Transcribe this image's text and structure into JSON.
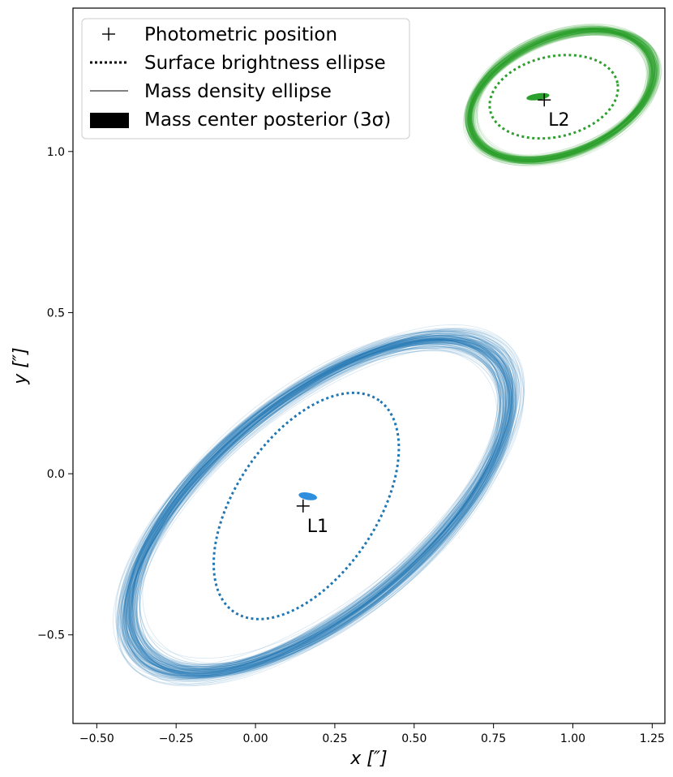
{
  "chart_data": {
    "type": "scatter",
    "xlabel": "x [″]",
    "ylabel": "y [″]",
    "xlim": [
      -0.575,
      1.29
    ],
    "ylim": [
      -0.775,
      1.445
    ],
    "xticks": [
      -0.5,
      -0.25,
      0.0,
      0.25,
      0.5,
      0.75,
      1.0,
      1.25
    ],
    "xtick_labels": [
      "−0.50",
      "−0.25",
      "0.00",
      "0.25",
      "0.50",
      "0.75",
      "1.00",
      "1.25"
    ],
    "yticks": [
      -0.5,
      0.0,
      0.5,
      1.0
    ],
    "ytick_labels": [
      "−0.5",
      "0.0",
      "0.5",
      "1.0"
    ],
    "grid": false,
    "legend_position": "top-left",
    "legend": [
      {
        "label": "Photometric position",
        "marker": "plus"
      },
      {
        "label": "Surface brightness ellipse",
        "marker": "dotted-line"
      },
      {
        "label": "Mass density ellipse",
        "marker": "thin-line"
      },
      {
        "label": "Mass center posterior (3σ)",
        "marker": "filled-patch"
      }
    ],
    "lenses": [
      {
        "name": "L1",
        "color": "#1f77b4",
        "posterior_color": "#2f8fdf",
        "photometric_position": [
          0.15,
          -0.1
        ],
        "surface_brightness_ellipse": {
          "center": [
            0.16,
            -0.1
          ],
          "semi_major": 0.4,
          "semi_minor": 0.22,
          "angle_deg": 55
        },
        "mass_ellipse": {
          "center": [
            0.2,
            -0.1
          ],
          "semi_major": 0.72,
          "semi_minor": 0.33,
          "angle_deg": 38.5
        },
        "mass_center_posterior": {
          "center": [
            0.165,
            -0.07
          ],
          "rx": 0.01,
          "ry": 0.028,
          "angle_deg": 80
        }
      },
      {
        "name": "L2",
        "color": "#2ca02c",
        "posterior_color": "#2ca02c",
        "photometric_position": [
          0.91,
          1.16
        ],
        "surface_brightness_ellipse": {
          "center": [
            0.94,
            1.17
          ],
          "semi_major": 0.205,
          "semi_minor": 0.125,
          "angle_deg": 12
        },
        "mass_ellipse": {
          "center": [
            0.965,
            1.175
          ],
          "semi_major": 0.305,
          "semi_minor": 0.18,
          "angle_deg": 22
        },
        "mass_center_posterior": {
          "center": [
            0.89,
            1.17
          ],
          "rx": 0.035,
          "ry": 0.009,
          "angle_deg": 8
        }
      }
    ]
  }
}
